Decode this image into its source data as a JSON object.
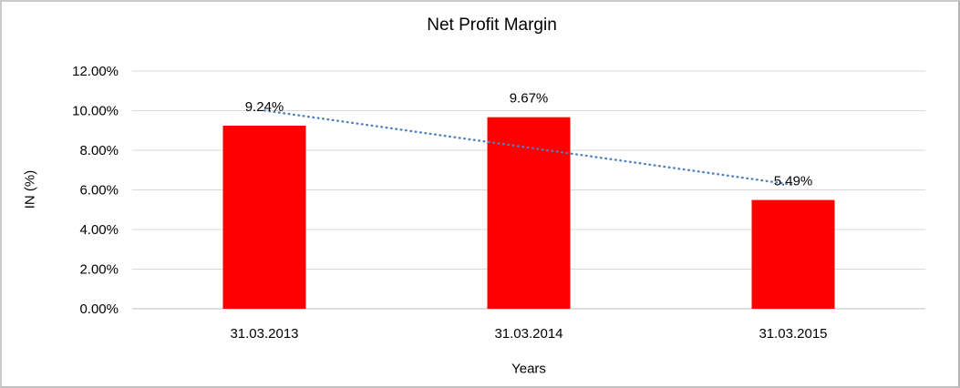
{
  "frame": {
    "background": "#ffffff",
    "border_color": "#c9c9c9"
  },
  "chart_data": {
    "type": "bar",
    "title": "Net Profit Margin",
    "categories": [
      "31.03.2013",
      "31.03.2014",
      "31.03.2015"
    ],
    "values": [
      9.24,
      9.67,
      5.49
    ],
    "data_labels": [
      "9.24%",
      "9.67%",
      "5.49%"
    ],
    "xlabel": "Years",
    "ylabel": "IN (%)",
    "ylim": [
      0,
      12
    ],
    "ytick_step": 2,
    "ytick_labels": [
      "0.00%",
      "2.00%",
      "4.00%",
      "6.00%",
      "8.00%",
      "10.00%",
      "12.00%"
    ],
    "grid": true,
    "legend": "none",
    "colors": {
      "bar": "#FF0000",
      "gridline": "#D9D9D9",
      "axis_line": "#BFBFBF",
      "trendline": "#4F81BD",
      "text": "#000000"
    },
    "trendline": {
      "type": "linear",
      "style": "dotted"
    }
  }
}
